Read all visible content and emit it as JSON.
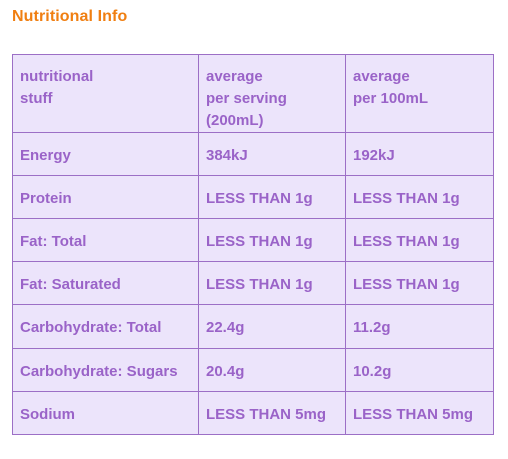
{
  "title": "Nutritional Info",
  "table": {
    "headers": [
      [
        "nutritional",
        "stuff"
      ],
      [
        "average",
        "per serving",
        "(200mL)"
      ],
      [
        "average",
        "per 100mL"
      ]
    ],
    "rows": [
      [
        "Energy",
        "384kJ",
        "192kJ"
      ],
      [
        "Protein",
        "LESS THAN 1g",
        "LESS THAN 1g"
      ],
      [
        "Fat: Total",
        "LESS THAN 1g",
        "LESS THAN 1g"
      ],
      [
        "Fat: Saturated",
        "LESS THAN 1g",
        "LESS THAN 1g"
      ],
      [
        "Carbohydrate: Total",
        "22.4g",
        "11.2g"
      ],
      [
        "Carbohydrate: Sugars",
        "20.4g",
        "10.2g"
      ],
      [
        "Sodium",
        "LESS THAN 5mg",
        "LESS THAN 5mg"
      ]
    ]
  },
  "colors": {
    "title": "#f07f12",
    "text": "#9a63c8",
    "border": "#9c6fc6",
    "cell_background": "#ece4fb"
  }
}
